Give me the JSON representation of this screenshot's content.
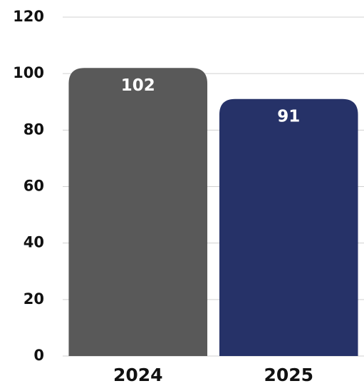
{
  "chart_data": {
    "type": "bar",
    "categories": [
      "2024",
      "2025"
    ],
    "values": [
      102,
      91
    ],
    "colors": [
      "#595959",
      "#263268"
    ],
    "ylim": [
      0,
      120
    ],
    "yticks": [
      0,
      20,
      40,
      60,
      80,
      100,
      120
    ],
    "grid": true
  }
}
